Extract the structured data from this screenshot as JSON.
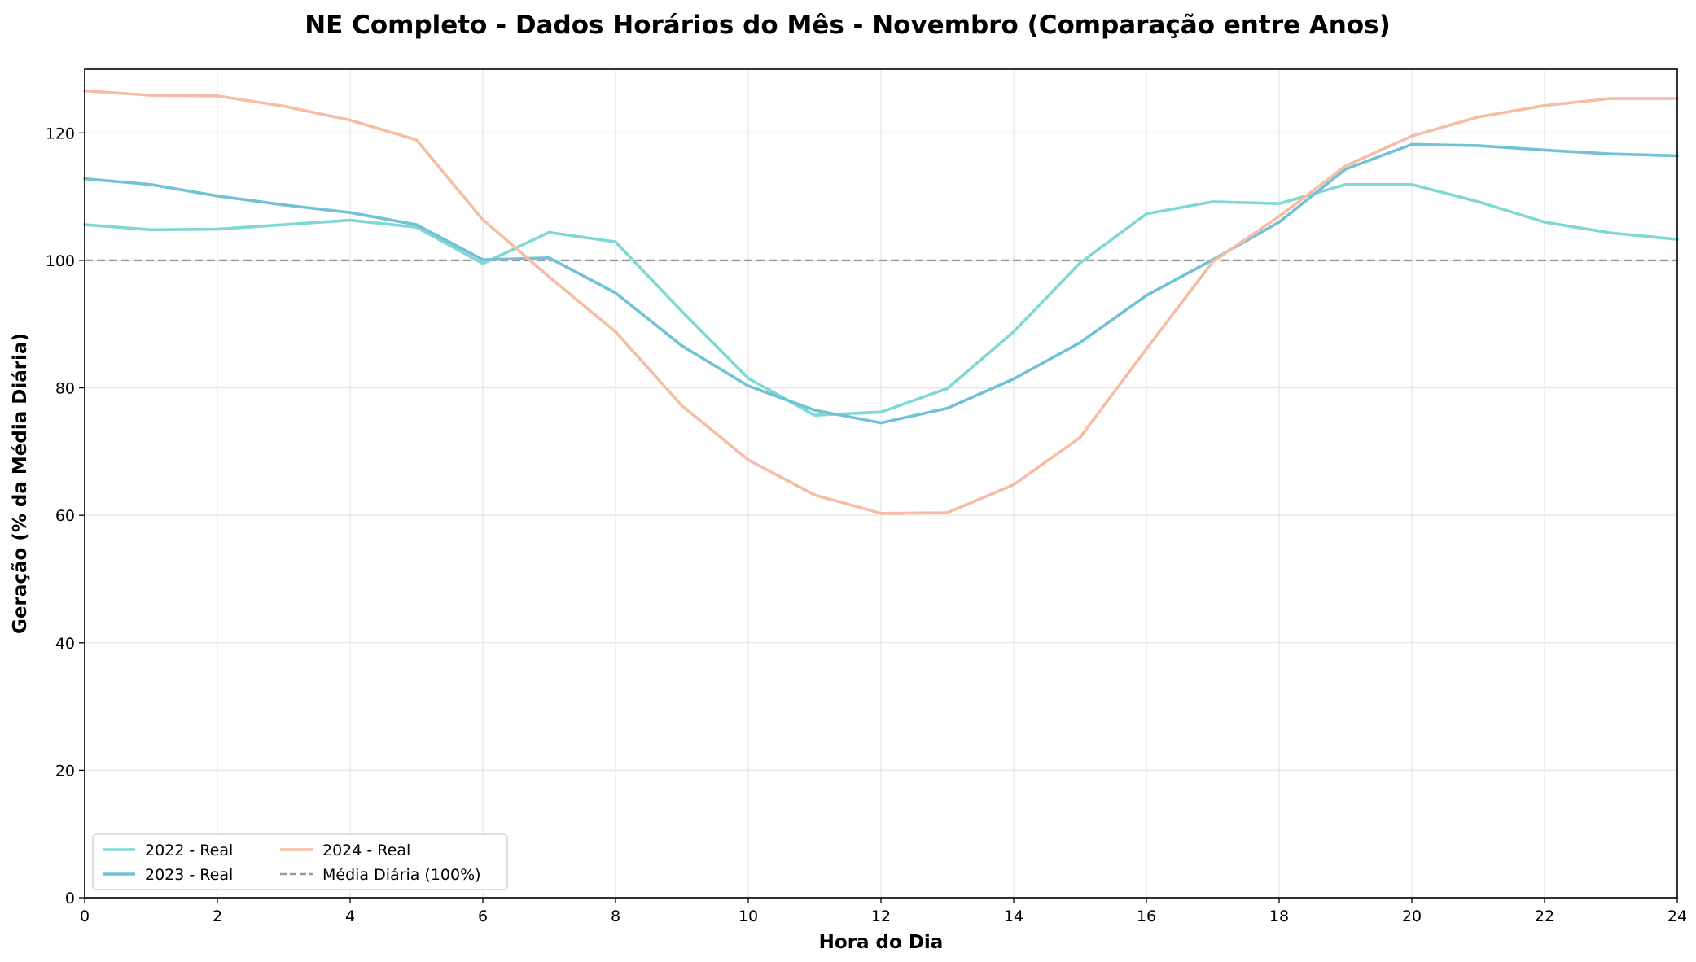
{
  "chart_data": {
    "type": "line",
    "title": "NE Completo - Dados Horários do Mês - Novembro (Comparação entre Anos)",
    "xlabel": "Hora do Dia",
    "ylabel": "Geração (% da Média Diária)",
    "xlim": [
      0,
      24
    ],
    "ylim": [
      0,
      130
    ],
    "xticks": [
      "0",
      "2",
      "4",
      "6",
      "8",
      "10",
      "12",
      "14",
      "16",
      "18",
      "20",
      "22",
      "24"
    ],
    "yticks": [
      "0",
      "20",
      "40",
      "60",
      "80",
      "100",
      "120"
    ],
    "grid": true,
    "legend_position": "lower-left",
    "x": [
      0,
      1,
      2,
      3,
      4,
      5,
      6,
      7,
      8,
      9,
      10,
      11,
      12,
      13,
      14,
      15,
      16,
      17,
      18,
      19,
      20,
      21,
      22,
      23,
      24
    ],
    "series": [
      {
        "name": "2022 - Real",
        "color": "#7fd8d2",
        "style": "solid",
        "values": [
          105.6,
          104.8,
          104.9,
          105.6,
          106.3,
          105.2,
          99.5,
          104.4,
          102.9,
          92.0,
          81.5,
          75.7,
          76.2,
          79.9,
          88.8,
          99.6,
          107.3,
          109.2,
          108.9,
          111.9,
          111.9,
          109.2,
          106.0,
          104.3,
          103.3
        ]
      },
      {
        "name": "2023 - Real",
        "color": "#72c2d6",
        "style": "solid",
        "values": [
          112.8,
          111.9,
          110.1,
          108.7,
          107.5,
          105.6,
          100.1,
          100.4,
          94.9,
          86.6,
          80.3,
          76.5,
          74.5,
          76.8,
          81.4,
          87.1,
          94.5,
          100.1,
          106.0,
          114.3,
          118.2,
          118.0,
          117.3,
          116.7,
          116.4
        ]
      },
      {
        "name": "2024 - Real",
        "color": "#f7bca4",
        "style": "solid",
        "values": [
          126.6,
          125.9,
          125.8,
          124.2,
          122.0,
          118.9,
          106.4,
          97.4,
          88.8,
          77.2,
          68.7,
          63.2,
          60.3,
          60.4,
          64.8,
          72.2,
          86.1,
          99.8,
          106.9,
          114.8,
          119.5,
          122.5,
          124.3,
          125.4,
          125.4
        ]
      },
      {
        "name": "Média Diária (100%)",
        "color": "#999999",
        "style": "dashed",
        "values": [
          100,
          100,
          100,
          100,
          100,
          100,
          100,
          100,
          100,
          100,
          100,
          100,
          100,
          100,
          100,
          100,
          100,
          100,
          100,
          100,
          100,
          100,
          100,
          100,
          100
        ]
      }
    ]
  }
}
